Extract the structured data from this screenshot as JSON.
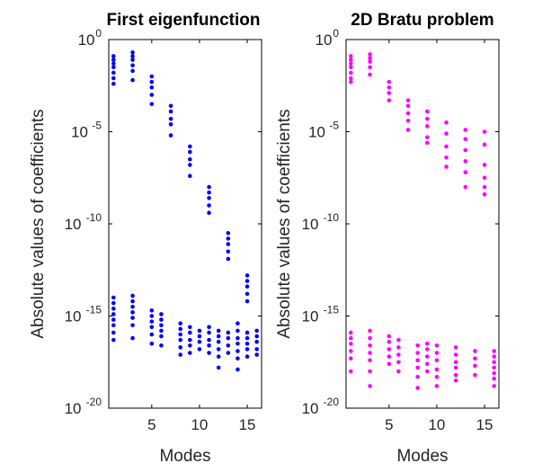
{
  "chart_data": [
    {
      "type": "scatter",
      "title": "First eigenfunction",
      "xlabel": "Modes",
      "ylabel": "Absolute values of coefficients",
      "yscale": "log",
      "xlim": [
        0.5,
        16.5
      ],
      "ylim_exponent": [
        -20,
        0
      ],
      "xticks": [
        5,
        10,
        15
      ],
      "yticks": [
        {
          "base": "10",
          "exp": "0",
          "value_exp": 0
        },
        {
          "base": "10",
          "exp": "-5",
          "value_exp": -5
        },
        {
          "base": "10",
          "exp": "-10",
          "value_exp": -10
        },
        {
          "base": "10",
          "exp": "-15",
          "value_exp": -15
        },
        {
          "base": "10",
          "exp": "-20",
          "value_exp": -20
        }
      ],
      "marker_color": "#0000ff",
      "series_log10": [
        {
          "x": 1,
          "y": [
            -0.9,
            -1.1,
            -1.3,
            -1.5,
            -1.8,
            -2.1,
            -2.4
          ]
        },
        {
          "x": 1,
          "y": [
            -14.0,
            -14.3,
            -14.6,
            -14.9,
            -15.2,
            -15.5,
            -15.9,
            -16.3
          ]
        },
        {
          "x": 3,
          "y": [
            -0.7,
            -0.9,
            -1.1,
            -1.4,
            -1.7,
            -2.2
          ]
        },
        {
          "x": 3,
          "y": [
            -13.9,
            -14.2,
            -14.5,
            -14.8,
            -15.1,
            -15.5,
            -16.2
          ]
        },
        {
          "x": 5,
          "y": [
            -2.0,
            -2.3,
            -2.6,
            -3.0,
            -3.5
          ]
        },
        {
          "x": 5,
          "y": [
            -14.7,
            -15.0,
            -15.3,
            -15.6,
            -16.0,
            -16.5
          ]
        },
        {
          "x": 6,
          "y": [
            -14.9,
            -15.2,
            -15.5,
            -15.8,
            -16.1,
            -16.6
          ]
        },
        {
          "x": 7,
          "y": [
            -3.6,
            -3.9,
            -4.3,
            -4.6,
            -5.2
          ]
        },
        {
          "x": 8,
          "y": [
            -15.4,
            -15.7,
            -16.0,
            -16.3,
            -16.7,
            -17.1
          ]
        },
        {
          "x": 9,
          "y": [
            -5.8,
            -6.1,
            -6.5,
            -6.8,
            -7.4
          ]
        },
        {
          "x": 9,
          "y": [
            -15.6,
            -15.9,
            -16.3,
            -16.6,
            -17.0
          ]
        },
        {
          "x": 10,
          "y": [
            -15.8,
            -16.1,
            -16.4,
            -16.8
          ]
        },
        {
          "x": 11,
          "y": [
            -8.0,
            -8.3,
            -8.6,
            -9.0,
            -9.4
          ]
        },
        {
          "x": 11,
          "y": [
            -15.6,
            -15.9,
            -16.3,
            -16.6,
            -17.0
          ]
        },
        {
          "x": 12,
          "y": [
            -15.8,
            -16.1,
            -16.4,
            -16.8,
            -17.2,
            -17.8
          ]
        },
        {
          "x": 13,
          "y": [
            -10.5,
            -10.8,
            -11.1,
            -11.5,
            -11.9
          ]
        },
        {
          "x": 13,
          "y": [
            -15.9,
            -16.2,
            -16.6,
            -17.0
          ]
        },
        {
          "x": 14,
          "y": [
            -15.4,
            -15.8,
            -16.2,
            -16.5,
            -16.9,
            -17.3,
            -17.9
          ]
        },
        {
          "x": 15,
          "y": [
            -12.8,
            -13.1,
            -13.4,
            -13.8,
            -14.2
          ]
        },
        {
          "x": 15,
          "y": [
            -15.9,
            -16.2,
            -16.5,
            -16.8,
            -17.2
          ]
        },
        {
          "x": 16,
          "y": [
            -15.8,
            -16.1,
            -16.4,
            -16.8,
            -17.1
          ]
        }
      ]
    },
    {
      "type": "scatter",
      "title": "2D Bratu problem",
      "xlabel": "Modes",
      "ylabel": "Absolute values of coefficients",
      "yscale": "log",
      "xlim": [
        0.5,
        16.5
      ],
      "ylim_exponent": [
        -20,
        0
      ],
      "xticks": [
        5,
        10,
        15
      ],
      "yticks": [
        {
          "base": "10",
          "exp": "0",
          "value_exp": 0
        },
        {
          "base": "10",
          "exp": "-5",
          "value_exp": -5
        },
        {
          "base": "10",
          "exp": "-10",
          "value_exp": -10
        },
        {
          "base": "10",
          "exp": "-15",
          "value_exp": -15
        },
        {
          "base": "10",
          "exp": "-20",
          "value_exp": -20
        }
      ],
      "marker_color": "#ff00ff",
      "series_log10": [
        {
          "x": 1,
          "y": [
            -0.9,
            -1.1,
            -1.3,
            -1.5,
            -1.8,
            -2.1,
            -2.3
          ]
        },
        {
          "x": 1,
          "y": [
            -15.9,
            -16.2,
            -16.5,
            -16.9,
            -17.3,
            -18.0
          ]
        },
        {
          "x": 3,
          "y": [
            -0.8,
            -1.0,
            -1.2,
            -1.5,
            -1.9
          ]
        },
        {
          "x": 3,
          "y": [
            -15.8,
            -16.2,
            -16.6,
            -17.0,
            -17.4,
            -18.0,
            -18.8
          ]
        },
        {
          "x": 5,
          "y": [
            -2.3,
            -2.6,
            -2.9,
            -3.3
          ]
        },
        {
          "x": 5,
          "y": [
            -16.1,
            -16.4,
            -16.8,
            -17.2,
            -17.6
          ]
        },
        {
          "x": 6,
          "y": [
            -16.3,
            -16.7,
            -17.1,
            -17.5,
            -18.0
          ]
        },
        {
          "x": 7,
          "y": [
            -3.3,
            -3.6,
            -4.0,
            -4.4,
            -4.9
          ]
        },
        {
          "x": 8,
          "y": [
            -16.6,
            -17.0,
            -17.4,
            -17.8,
            -18.3,
            -18.9
          ]
        },
        {
          "x": 9,
          "y": [
            -3.9,
            -4.3,
            -4.7,
            -5.3,
            -5.6
          ]
        },
        {
          "x": 9,
          "y": [
            -16.5,
            -16.8,
            -17.2,
            -17.6,
            -18.0
          ]
        },
        {
          "x": 10,
          "y": [
            -16.6,
            -17.0,
            -17.4,
            -17.9,
            -18.3,
            -18.8
          ]
        },
        {
          "x": 11,
          "y": [
            -4.5,
            -5.1,
            -5.8,
            -6.4,
            -6.9
          ]
        },
        {
          "x": 12,
          "y": [
            -16.7,
            -17.1,
            -17.5,
            -17.8,
            -18.2,
            -18.5
          ]
        },
        {
          "x": 13,
          "y": [
            -4.9,
            -5.4,
            -6.0,
            -6.6,
            -7.2,
            -8.0
          ]
        },
        {
          "x": 14,
          "y": [
            -16.9,
            -17.3,
            -17.7,
            -18.2
          ]
        },
        {
          "x": 15,
          "y": [
            -5.0,
            -5.7,
            -6.8,
            -7.5,
            -8.0,
            -8.4
          ]
        },
        {
          "x": 16,
          "y": [
            -16.9,
            -17.2,
            -17.5,
            -17.8,
            -18.1,
            -18.4,
            -18.8
          ]
        }
      ]
    }
  ]
}
